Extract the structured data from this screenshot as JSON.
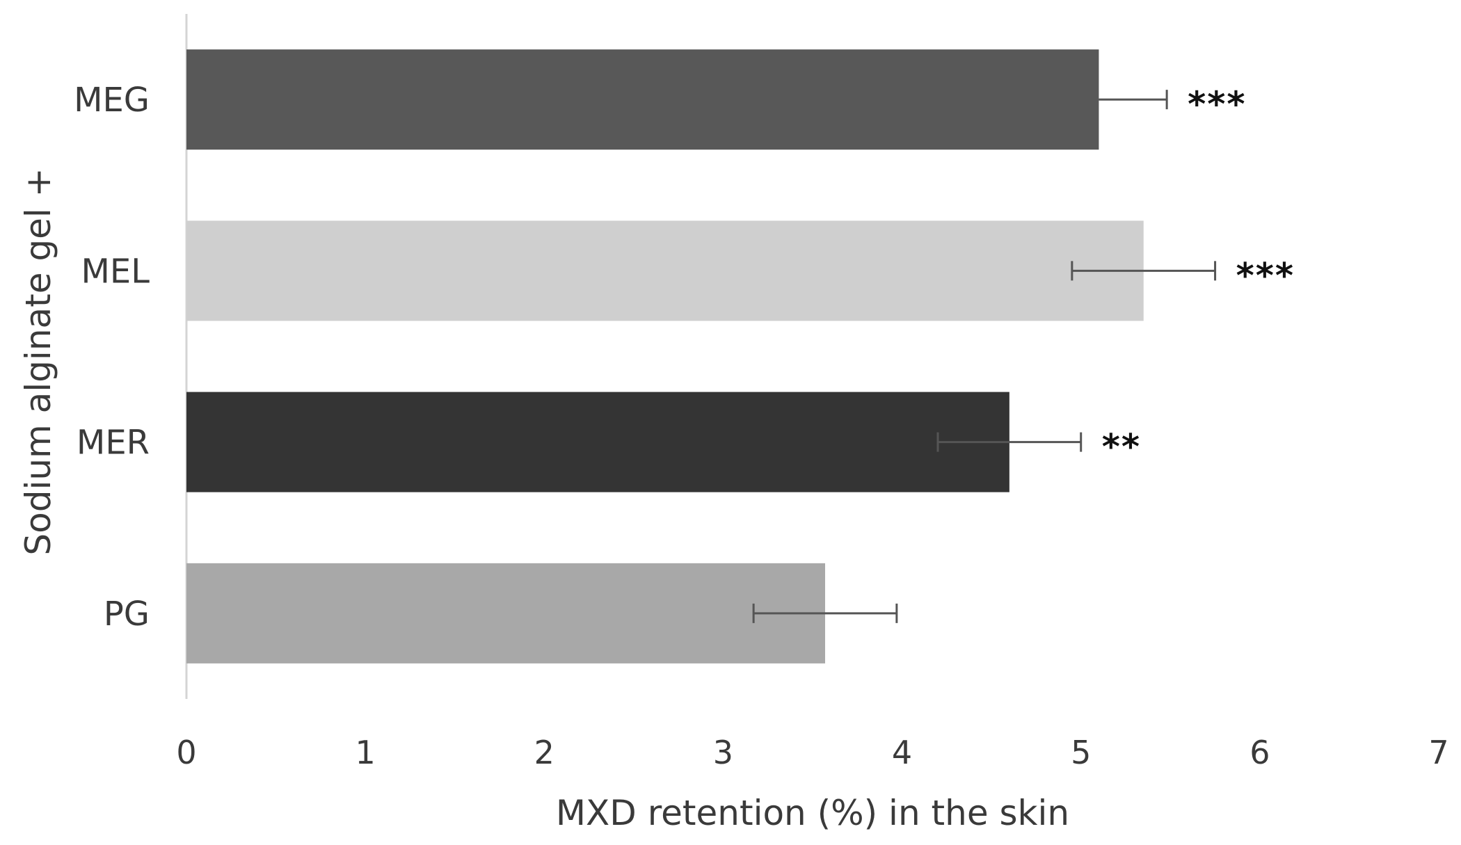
{
  "chart_data": {
    "type": "bar",
    "orientation": "horizontal",
    "categories": [
      "MEG",
      "MEL",
      "MER",
      "PG"
    ],
    "values": [
      5.1,
      5.35,
      4.6,
      3.57
    ],
    "errors": [
      0.38,
      0.4,
      0.4,
      0.4
    ],
    "error_display": [
      "upper",
      "both",
      "both",
      "both"
    ],
    "significance": [
      "***",
      "***",
      "**",
      ""
    ],
    "colors": [
      "#585858",
      "#cfcfcf",
      "#343434",
      "#a8a8a8"
    ],
    "xlabel": "MXD retention (%) in the skin",
    "ylabel": "Sodium alginate gel +",
    "xlim": [
      0,
      7
    ],
    "xticks": [
      "0",
      "1",
      "2",
      "3",
      "4",
      "5",
      "6",
      "7"
    ],
    "grid": false,
    "legend": "none"
  }
}
